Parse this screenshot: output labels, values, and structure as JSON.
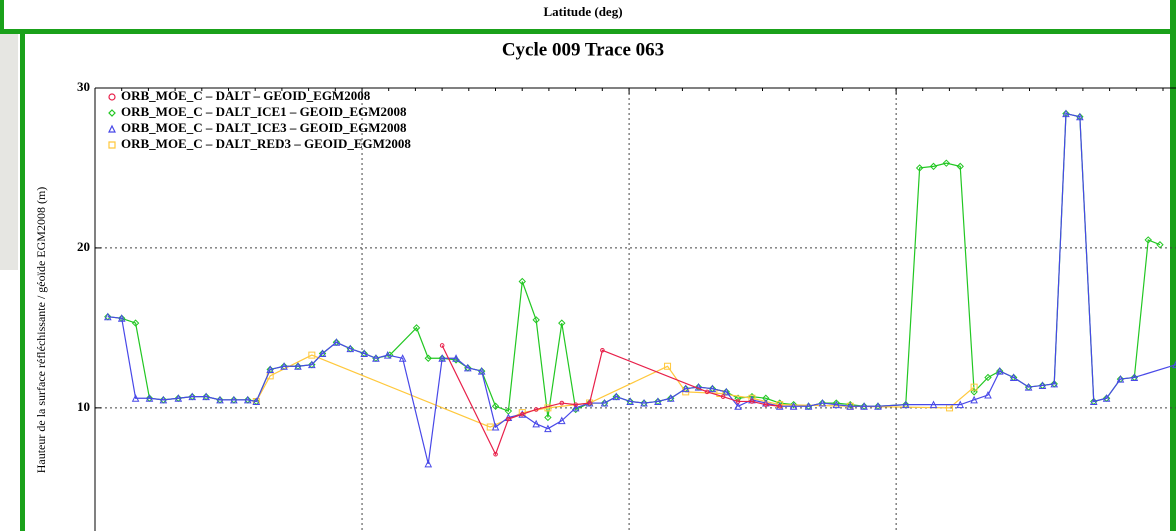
{
  "top_panel": {
    "x_label": "Latitude (deg)"
  },
  "chart_data": {
    "type": "line",
    "title": "Cycle 009  Trace 063",
    "y_label": "Hauteur de la surface réfléchissante / géoïde EGM2008 (m)",
    "xlim": [
      0,
      101.2
    ],
    "xticks": [
      25,
      50,
      75
    ],
    "ylim": [
      2.3,
      30
    ],
    "yticks": [
      10,
      20,
      30
    ],
    "grid": true,
    "legend": "upper left",
    "series": [
      {
        "name": "ORB_MOE_C – DALT – GEOID_EGM2008",
        "color": "#e8204a",
        "marker": "circle",
        "x": [
          32.5,
          37.5,
          38.7,
          40.0,
          41.3,
          43.7,
          45.0,
          46.3,
          47.5,
          57.3,
          58.8,
          60.2,
          61.5,
          62.8,
          64.1
        ],
        "values": [
          13.9,
          7.1,
          9.3,
          9.6,
          9.9,
          10.3,
          10.2,
          10.3,
          13.6,
          11.0,
          10.7,
          10.4,
          10.4,
          10.2,
          10.1
        ]
      },
      {
        "name": "ORB_MOE_C – DALT_ICE1 – GEOID_EGM2008",
        "color": "#22c722",
        "marker": "diamond",
        "x": [
          1.2,
          2.5,
          3.8,
          5.1,
          6.4,
          7.8,
          9.1,
          10.4,
          11.7,
          13.0,
          14.3,
          15.1,
          16.4,
          17.7,
          19.0,
          20.3,
          21.3,
          22.6,
          23.9,
          25.2,
          26.3,
          27.6,
          30.1,
          31.2,
          32.5,
          33.8,
          34.9,
          36.2,
          37.5,
          38.7,
          40.0,
          41.3,
          42.4,
          43.7,
          45.0,
          46.3,
          47.7,
          48.8,
          50.1,
          51.4,
          52.7,
          53.9,
          55.3,
          56.5,
          57.8,
          59.1,
          60.2,
          61.5,
          62.8,
          64.1,
          65.4,
          66.8,
          68.1,
          69.4,
          70.7,
          72.0,
          73.3,
          75.9,
          77.2,
          78.5,
          79.7,
          81.0,
          82.3,
          83.6,
          84.7,
          86.0,
          87.4,
          88.7,
          89.8,
          90.9,
          92.2,
          93.5,
          94.7,
          96.0,
          97.3,
          98.6,
          99.7
        ],
        "values": [
          15.7,
          15.6,
          15.3,
          10.6,
          10.5,
          10.6,
          10.7,
          10.7,
          10.5,
          10.5,
          10.5,
          10.4,
          12.4,
          12.6,
          12.6,
          12.7,
          13.4,
          14.1,
          13.7,
          13.4,
          13.1,
          13.3,
          15.0,
          13.1,
          13.1,
          13.0,
          12.5,
          12.3,
          10.1,
          9.8,
          17.9,
          15.5,
          9.4,
          15.3,
          9.9,
          10.3,
          10.3,
          10.7,
          10.4,
          10.3,
          10.4,
          10.6,
          11.2,
          11.3,
          11.2,
          11.0,
          10.6,
          10.7,
          10.6,
          10.3,
          10.2,
          10.1,
          10.3,
          10.3,
          10.2,
          10.1,
          10.1,
          10.2,
          25.0,
          25.1,
          25.3,
          25.1,
          11.0,
          11.9,
          12.3,
          11.9,
          11.3,
          11.4,
          11.5,
          28.4,
          28.2,
          10.4,
          10.6,
          11.8,
          11.9,
          20.5,
          20.2
        ]
      },
      {
        "name": "ORB_MOE_C – DALT_ICE3 – GEOID_EGM2008",
        "color": "#4848e8",
        "marker": "triangle",
        "x": [
          1.2,
          2.5,
          3.8,
          5.1,
          6.4,
          7.8,
          9.1,
          10.4,
          11.7,
          13.0,
          14.3,
          15.1,
          16.4,
          17.7,
          19.0,
          20.3,
          21.3,
          22.6,
          23.9,
          25.2,
          26.3,
          27.4,
          28.8,
          31.2,
          32.5,
          33.8,
          34.9,
          36.2,
          37.5,
          38.7,
          40.0,
          41.3,
          42.4,
          43.7,
          45.0,
          46.3,
          47.7,
          48.8,
          50.1,
          51.4,
          52.7,
          53.9,
          55.3,
          56.5,
          57.8,
          59.1,
          60.2,
          61.5,
          62.8,
          64.1,
          65.4,
          66.8,
          68.1,
          69.4,
          70.7,
          72.0,
          73.3,
          75.9,
          78.5,
          81.0,
          82.3,
          83.6,
          84.7,
          86.0,
          87.4,
          88.7,
          89.8,
          90.9,
          92.2,
          93.5,
          94.7,
          96.0,
          97.3,
          101.2
        ],
        "values": [
          15.7,
          15.6,
          10.6,
          10.6,
          10.5,
          10.6,
          10.7,
          10.7,
          10.5,
          10.5,
          10.5,
          10.4,
          12.4,
          12.6,
          12.6,
          12.7,
          13.4,
          14.1,
          13.7,
          13.4,
          13.1,
          13.3,
          13.1,
          6.5,
          13.1,
          13.1,
          12.5,
          12.3,
          8.8,
          9.4,
          9.6,
          9.0,
          8.7,
          9.2,
          10.0,
          10.3,
          10.3,
          10.7,
          10.4,
          10.3,
          10.4,
          10.6,
          11.2,
          11.3,
          11.2,
          11.0,
          10.1,
          10.5,
          10.3,
          10.1,
          10.1,
          10.1,
          10.3,
          10.2,
          10.1,
          10.1,
          10.1,
          10.2,
          10.2,
          10.2,
          10.5,
          10.8,
          12.3,
          11.9,
          11.3,
          11.4,
          11.5,
          28.4,
          28.2,
          10.4,
          10.6,
          11.8,
          11.9,
          12.7
        ]
      },
      {
        "name": "ORB_MOE_C – DALT_RED3 – GEOID_EGM2008",
        "color": "#ffc83c",
        "marker": "square",
        "x": [
          15.1,
          16.4,
          20.3,
          37.0,
          40.0,
          42.4,
          46.3,
          53.6,
          55.3,
          58.5,
          61.5,
          64.1,
          70.7,
          80.0,
          82.3
        ],
        "values": [
          10.4,
          12.0,
          13.3,
          8.8,
          9.7,
          10.0,
          10.3,
          12.6,
          11.0,
          10.9,
          10.6,
          10.2,
          10.1,
          10.0,
          11.3
        ]
      }
    ]
  }
}
